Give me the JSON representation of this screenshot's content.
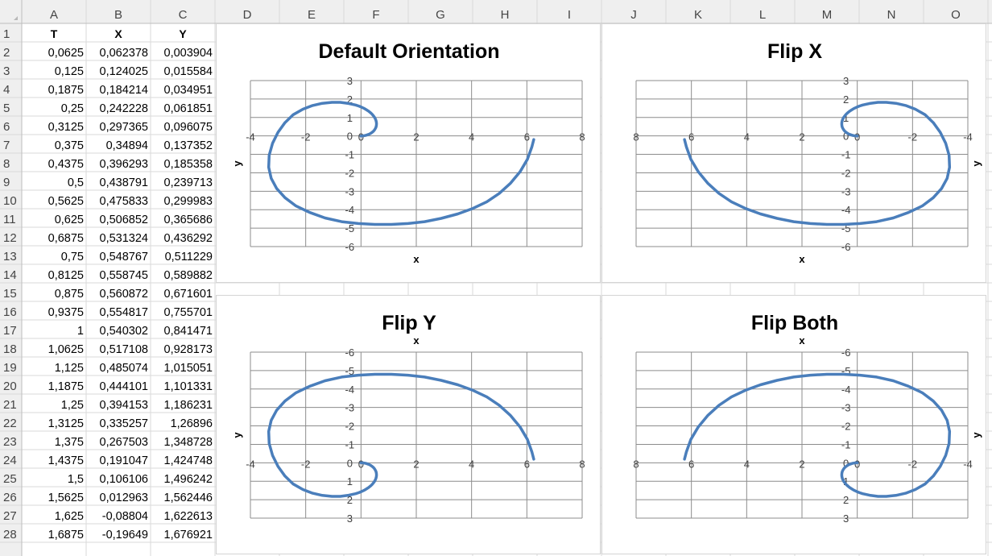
{
  "sheet": {
    "columns": [
      "A",
      "B",
      "C",
      "D",
      "E",
      "F",
      "G",
      "H",
      "I",
      "J",
      "K",
      "L",
      "M",
      "N",
      "O"
    ],
    "rows": [
      "1",
      "2",
      "3",
      "4",
      "5",
      "6",
      "7",
      "8",
      "9",
      "10",
      "11",
      "12",
      "13",
      "14",
      "15",
      "16",
      "17",
      "18",
      "19",
      "20",
      "21",
      "22",
      "23",
      "24",
      "25",
      "26",
      "27",
      "28"
    ],
    "headers": [
      "T",
      "X",
      "Y"
    ],
    "data": [
      [
        "0,0625",
        "0,062378",
        "0,003904"
      ],
      [
        "0,125",
        "0,124025",
        "0,015584"
      ],
      [
        "0,1875",
        "0,184214",
        "0,034951"
      ],
      [
        "0,25",
        "0,242228",
        "0,061851"
      ],
      [
        "0,3125",
        "0,297365",
        "0,096075"
      ],
      [
        "0,375",
        "0,34894",
        "0,137352"
      ],
      [
        "0,4375",
        "0,396293",
        "0,185358"
      ],
      [
        "0,5",
        "0,438791",
        "0,239713"
      ],
      [
        "0,5625",
        "0,475833",
        "0,299983"
      ],
      [
        "0,625",
        "0,506852",
        "0,365686"
      ],
      [
        "0,6875",
        "0,531324",
        "0,436292"
      ],
      [
        "0,75",
        "0,548767",
        "0,511229"
      ],
      [
        "0,8125",
        "0,558745",
        "0,589882"
      ],
      [
        "0,875",
        "0,560872",
        "0,671601"
      ],
      [
        "0,9375",
        "0,554817",
        "0,755701"
      ],
      [
        "1",
        "0,540302",
        "0,841471"
      ],
      [
        "1,0625",
        "0,517108",
        "0,928173"
      ],
      [
        "1,125",
        "0,485074",
        "1,015051"
      ],
      [
        "1,1875",
        "0,444101",
        "1,101331"
      ],
      [
        "1,25",
        "0,394153",
        "1,186231"
      ],
      [
        "1,3125",
        "0,335257",
        "1,26896"
      ],
      [
        "1,375",
        "0,267503",
        "1,348728"
      ],
      [
        "1,4375",
        "0,191047",
        "1,424748"
      ],
      [
        "1,5",
        "0,106106",
        "1,496242"
      ],
      [
        "1,5625",
        "0,012963",
        "1,562446"
      ],
      [
        "1,625",
        "-0,08804",
        "1,622613"
      ],
      [
        "1,6875",
        "-0,19649",
        "1,676921"
      ]
    ]
  },
  "chart_data": [
    {
      "type": "scatter",
      "title": "Default Orientation",
      "xlabel": "x",
      "ylabel": "y",
      "xlim": [
        -4,
        8
      ],
      "ylim": [
        -6,
        3
      ],
      "x_reversed": false,
      "y_reversed": false,
      "series_color": "#4a7ebb",
      "x_ticks": [
        "-4",
        "-2",
        "0",
        "2",
        "4",
        "6",
        "8"
      ],
      "y_ticks": [
        "-6",
        "-5",
        "-4",
        "-3",
        "-2",
        "-1",
        "0",
        "1",
        "2",
        "3"
      ]
    },
    {
      "type": "scatter",
      "title": "Flip X",
      "xlabel": "x",
      "ylabel": "y",
      "xlim": [
        -4,
        8
      ],
      "ylim": [
        -6,
        3
      ],
      "x_reversed": true,
      "y_reversed": false,
      "series_color": "#4a7ebb",
      "x_ticks": [
        "-4",
        "-2",
        "0",
        "2",
        "4",
        "6",
        "8"
      ],
      "y_ticks": [
        "-6",
        "-5",
        "-4",
        "-3",
        "-2",
        "-1",
        "0",
        "1",
        "2",
        "3"
      ]
    },
    {
      "type": "scatter",
      "title": "Flip Y",
      "xlabel": "x",
      "ylabel": "y",
      "xlim": [
        -4,
        8
      ],
      "ylim": [
        -6,
        3
      ],
      "x_reversed": false,
      "y_reversed": true,
      "series_color": "#4a7ebb",
      "x_ticks": [
        "-4",
        "-2",
        "0",
        "2",
        "4",
        "6",
        "8"
      ],
      "y_ticks": [
        "-6",
        "-5",
        "-4",
        "-3",
        "-2",
        "-1",
        "0",
        "1",
        "2",
        "3"
      ]
    },
    {
      "type": "scatter",
      "title": "Flip Both",
      "xlabel": "x",
      "ylabel": "y",
      "xlim": [
        -4,
        8
      ],
      "ylim": [
        -6,
        3
      ],
      "x_reversed": true,
      "y_reversed": true,
      "series_color": "#4a7ebb",
      "x_ticks": [
        "-4",
        "-2",
        "0",
        "2",
        "4",
        "6",
        "8"
      ],
      "y_ticks": [
        "-6",
        "-5",
        "-4",
        "-3",
        "-2",
        "-1",
        "0",
        "1",
        "2",
        "3"
      ]
    }
  ],
  "series_points": [
    [
      0.0,
      0.0
    ],
    [
      0.062,
      0.004
    ],
    [
      0.124,
      0.016
    ],
    [
      0.184,
      0.035
    ],
    [
      0.242,
      0.062
    ],
    [
      0.297,
      0.096
    ],
    [
      0.349,
      0.137
    ],
    [
      0.396,
      0.185
    ],
    [
      0.439,
      0.24
    ],
    [
      0.476,
      0.3
    ],
    [
      0.507,
      0.366
    ],
    [
      0.531,
      0.436
    ],
    [
      0.549,
      0.511
    ],
    [
      0.559,
      0.59
    ],
    [
      0.561,
      0.672
    ],
    [
      0.555,
      0.756
    ],
    [
      0.54,
      0.841
    ],
    [
      0.517,
      0.928
    ],
    [
      0.485,
      1.015
    ],
    [
      0.444,
      1.101
    ],
    [
      0.394,
      1.186
    ],
    [
      0.335,
      1.269
    ],
    [
      0.268,
      1.349
    ],
    [
      0.191,
      1.425
    ],
    [
      0.106,
      1.496
    ],
    [
      0.013,
      1.562
    ],
    [
      -0.088,
      1.623
    ],
    [
      -0.196,
      1.677
    ],
    [
      -0.45,
      1.76
    ],
    [
      -0.75,
      1.82
    ],
    [
      -1.05,
      1.82
    ],
    [
      -1.4,
      1.77
    ],
    [
      -1.75,
      1.65
    ],
    [
      -2.1,
      1.45
    ],
    [
      -2.45,
      1.15
    ],
    [
      -2.75,
      0.72
    ],
    [
      -3.0,
      0.2
    ],
    [
      -3.2,
      -0.4
    ],
    [
      -3.32,
      -1.05
    ],
    [
      -3.34,
      -1.7
    ],
    [
      -3.25,
      -2.3
    ],
    [
      -3.05,
      -2.85
    ],
    [
      -2.75,
      -3.35
    ],
    [
      -2.35,
      -3.8
    ],
    [
      -1.85,
      -4.15
    ],
    [
      -1.3,
      -4.45
    ],
    [
      -0.7,
      -4.65
    ],
    [
      -0.1,
      -4.75
    ],
    [
      0.5,
      -4.8
    ],
    [
      1.1,
      -4.8
    ],
    [
      1.7,
      -4.75
    ],
    [
      2.3,
      -4.65
    ],
    [
      2.9,
      -4.47
    ],
    [
      3.5,
      -4.23
    ],
    [
      4.05,
      -3.93
    ],
    [
      4.55,
      -3.57
    ],
    [
      5.0,
      -3.12
    ],
    [
      5.4,
      -2.58
    ],
    [
      5.75,
      -1.95
    ],
    [
      6.02,
      -1.27
    ],
    [
      6.18,
      -0.6
    ],
    [
      6.25,
      -0.2
    ]
  ]
}
